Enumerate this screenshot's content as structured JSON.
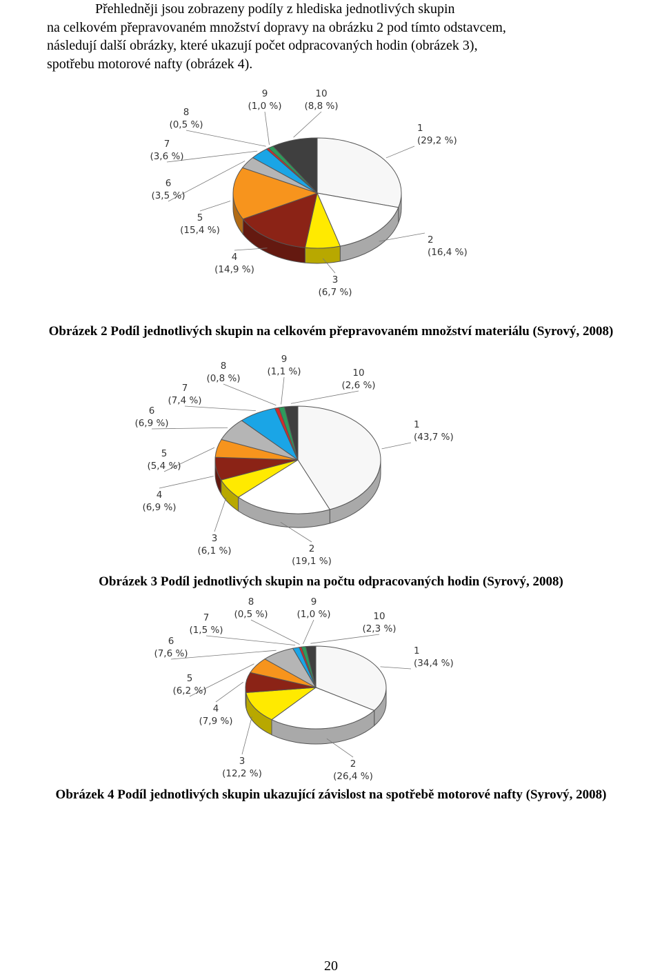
{
  "intro": {
    "lines": [
      "Přehledněji jsou zobrazeny podíly z hlediska jednotlivých skupin",
      "na celkovém přepravovaném množství dopravy na obrázku 2 pod tímto odstavcem,",
      "následují další obrázky, které ukazují počet odpracovaných hodin (obrázek 3),",
      "spotřebu motorové nafty (obrázek 4)."
    ]
  },
  "colors": {
    "g1": "#f7f7f7",
    "g2": "#ffffff",
    "g3": "#ffea00",
    "g4": "#8b2316",
    "g5": "#f7941d",
    "g6": "#b5b5b5",
    "g7": "#1aa5e6",
    "g8": "#d52a2a",
    "g9": "#2e9b5b",
    "g10": "#3f3f3f"
  },
  "chart_data": [
    {
      "type": "pie",
      "caption": "Obrázek 2 Podíl jednotlivých skupin na celkovém přepravovaném množství materiálu (Syrový, 2008)",
      "categories": [
        "1",
        "2",
        "3",
        "4",
        "5",
        "6",
        "7",
        "8",
        "9",
        "10"
      ],
      "values": [
        29.2,
        16.4,
        6.7,
        14.9,
        15.4,
        3.5,
        3.6,
        0.5,
        1.0,
        8.8
      ],
      "labels": [
        "(29,2 %)",
        "(16,4 %)",
        "(6,7 %)",
        "(14,9 %)",
        "(15,4 %)",
        "(3,5 %)",
        "(3,6 %)",
        "(0,5 %)",
        "(1,0 %)",
        "(8,8 %)"
      ]
    },
    {
      "type": "pie",
      "caption": "Obrázek 3 Podíl jednotlivých skupin na počtu odpracovaných hodin (Syrový, 2008)",
      "categories": [
        "1",
        "2",
        "3",
        "4",
        "5",
        "6",
        "7",
        "8",
        "9",
        "10"
      ],
      "values": [
        43.7,
        19.1,
        6.1,
        6.9,
        5.4,
        6.9,
        7.4,
        0.8,
        1.1,
        2.6
      ],
      "labels": [
        "(43,7 %)",
        "(19,1 %)",
        "(6,1 %)",
        "(6,9 %)",
        "(5,4 %)",
        "(6,9 %)",
        "(7,4 %)",
        "(0,8 %)",
        "(1,1 %)",
        "(2,6 %)"
      ]
    },
    {
      "type": "pie",
      "caption": "Obrázek 4 Podíl jednotlivých skupin ukazující závislost na spotřebě motorové nafty (Syrový, 2008)",
      "categories": [
        "1",
        "2",
        "3",
        "4",
        "5",
        "6",
        "7",
        "8",
        "9",
        "10"
      ],
      "values": [
        34.4,
        26.4,
        12.2,
        7.9,
        6.2,
        7.6,
        1.5,
        0.5,
        1.0,
        2.3
      ],
      "labels": [
        "(34,4 %)",
        "(26,4 %)",
        "(12,2 %)",
        "(7,9 %)",
        "(6,2 %)",
        "(7,6 %)",
        "(1,5 %)",
        "(0,5 %)",
        "(1,0 %)",
        "(2,3 %)"
      ]
    }
  ],
  "page_number": "20"
}
